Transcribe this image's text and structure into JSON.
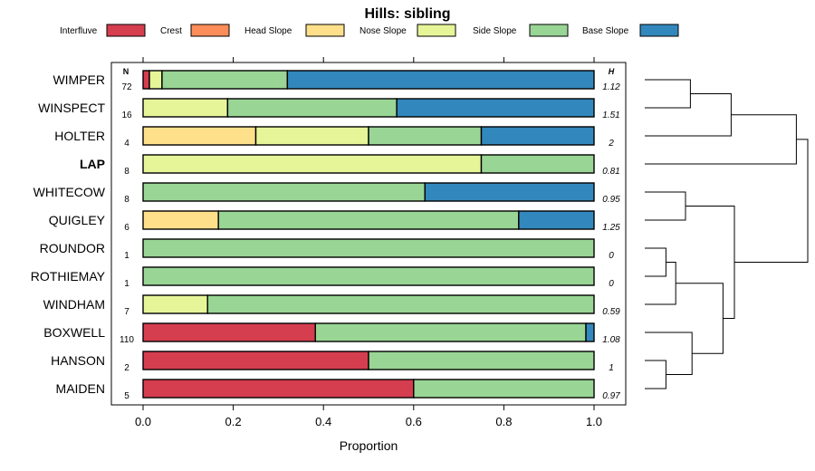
{
  "chart_data": {
    "type": "bar",
    "orientation": "horizontal",
    "stacked": true,
    "title": "Hills: sibling",
    "xlabel": "Proportion",
    "ylabel": "",
    "xlim": [
      -0.07,
      1.07
    ],
    "xticks": [
      0.0,
      0.2,
      0.4,
      0.6,
      0.8,
      1.0
    ],
    "xtick_labels": [
      "0.0",
      "0.2",
      "0.4",
      "0.6",
      "0.8",
      "1.0"
    ],
    "n_header": "N",
    "h_header": "H",
    "legend_position": "top",
    "legend": [
      "Interfluve",
      "Crest",
      "Head Slope",
      "Nose Slope",
      "Side Slope",
      "Base Slope"
    ],
    "colors": [
      "#d53e4f",
      "#fc8d59",
      "#fee08b",
      "#e6f598",
      "#99d594",
      "#3288bd"
    ],
    "highlight": "LAP",
    "categories": [
      "WIMPER",
      "WINSPECT",
      "HOLTER",
      "LAP",
      "WHITECOW",
      "QUIGLEY",
      "ROUNDOR",
      "ROTHIEMAY",
      "WINDHAM",
      "BOXWELL",
      "HANSON",
      "MAIDEN"
    ],
    "n": [
      "72",
      "16",
      "4",
      "8",
      "8",
      "6",
      "1",
      "1",
      "7",
      "110",
      "2",
      "5"
    ],
    "h": [
      "1.12",
      "1.51",
      "2",
      "0.81",
      "0.95",
      "1.25",
      "0",
      "0",
      "0.59",
      "1.08",
      "1",
      "0.97"
    ],
    "series": [
      {
        "name": "Interfluve",
        "values": [
          0.014,
          0,
          0,
          0,
          0,
          0,
          0,
          0,
          0,
          0.382,
          0.5,
          0.6
        ]
      },
      {
        "name": "Crest",
        "values": [
          0,
          0,
          0,
          0,
          0,
          0,
          0,
          0,
          0,
          0,
          0,
          0
        ]
      },
      {
        "name": "Head Slope",
        "values": [
          0,
          0,
          0.25,
          0,
          0,
          0.167,
          0,
          0,
          0,
          0,
          0,
          0
        ]
      },
      {
        "name": "Nose Slope",
        "values": [
          0.028,
          0.1875,
          0.25,
          0.75,
          0,
          0,
          0,
          0,
          0.143,
          0,
          0,
          0
        ]
      },
      {
        "name": "Side Slope",
        "values": [
          0.278,
          0.375,
          0.25,
          0.25,
          0.625,
          0.666,
          1.0,
          1.0,
          0.857,
          0.6,
          0.5,
          0.4
        ]
      },
      {
        "name": "Base Slope",
        "values": [
          0.68,
          0.4375,
          0.25,
          0,
          0.375,
          0.167,
          0,
          0,
          0,
          0.018,
          0,
          0
        ]
      }
    ],
    "dendrogram": {
      "merges": [
        {
          "left": "WIMPER",
          "right": "WINSPECT",
          "height": 0.28
        },
        {
          "left": "m0",
          "right": "HOLTER",
          "height": 0.53
        },
        {
          "left": "m1",
          "right": "LAP",
          "height": 0.93
        },
        {
          "left": "WHITECOW",
          "right": "QUIGLEY",
          "height": 0.25
        },
        {
          "left": "ROUNDOR",
          "right": "ROTHIEMAY",
          "height": 0.13
        },
        {
          "left": "m4",
          "right": "WINDHAM",
          "height": 0.19
        },
        {
          "left": "HANSON",
          "right": "MAIDEN",
          "height": 0.13
        },
        {
          "left": "BOXWELL",
          "right": "m6",
          "height": 0.29
        },
        {
          "left": "m5",
          "right": "m7",
          "height": 0.48
        },
        {
          "left": "m3",
          "right": "m8",
          "height": 0.55
        },
        {
          "left": "m2",
          "right": "m9",
          "height": 1.0
        }
      ]
    }
  }
}
